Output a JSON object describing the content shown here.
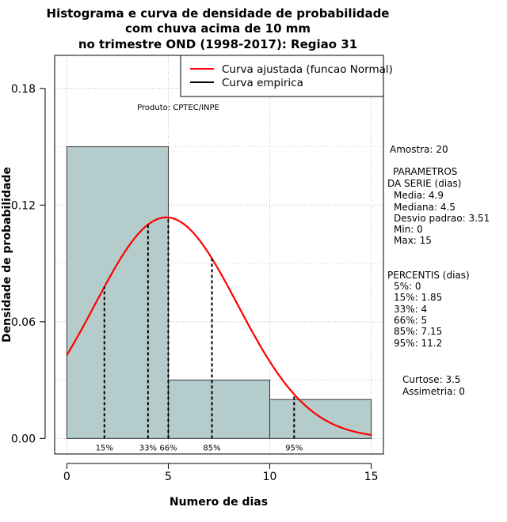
{
  "chart_data": {
    "type": "histogram",
    "title_lines": [
      "Histograma e curva de densidade de probabilidade",
      "com chuva acima de 10 mm",
      "no trimestre OND (1998-2017): Regiao 31"
    ],
    "xlabel": "Numero de dias",
    "ylabel": "Densidade de probabilidade",
    "xlim": [
      -0.6,
      15.6
    ],
    "ylim": [
      -0.008,
      0.197
    ],
    "x_ticks": [
      0,
      5,
      10,
      15
    ],
    "y_ticks": [
      0.0,
      0.06,
      0.12,
      0.18
    ],
    "y_tick_labels": [
      "0.00",
      "0.06",
      "0.12",
      "0.18"
    ],
    "bins": [
      {
        "start": 0,
        "end": 5,
        "density": 0.15
      },
      {
        "start": 5,
        "end": 10,
        "density": 0.03
      },
      {
        "start": 10,
        "end": 15,
        "density": 0.02
      }
    ],
    "bar_color": "#b5cccc",
    "curve": {
      "mean": 4.9,
      "sd": 3.51,
      "color": "#ff0000",
      "x_range": [
        0,
        15
      ]
    },
    "percentile_markers": [
      {
        "label": "15%",
        "x": 1.85
      },
      {
        "label": "33%",
        "x": 4
      },
      {
        "label": "66%",
        "x": 5
      },
      {
        "label": "85%",
        "x": 7.15
      },
      {
        "label": "95%",
        "x": 11.2
      }
    ],
    "legend": {
      "position": "top-right",
      "entries": [
        {
          "label": "Curva ajustada (funcao Normal)",
          "color": "#ff0000"
        },
        {
          "label": "Curva empirica",
          "color": "#000000"
        }
      ]
    },
    "credit": "Produto: CPTEC/INPE"
  },
  "side_stats": {
    "amostra": "Amostra: 20",
    "parametros_header_1": "PARAMETROS",
    "parametros_header_2": "DA SERIE (dias)",
    "parametros": [
      "Media: 4.9",
      "Mediana: 4.5",
      "Desvio padrao: 3.51",
      "Min: 0",
      "Max: 15"
    ],
    "percentis_header": "PERCENTIS (dias)",
    "percentis": [
      "5%: 0",
      "15%: 1.85",
      "33%: 4",
      "66%: 5",
      "85%: 7.15",
      "95%: 11.2"
    ],
    "curtose": "Curtose: 3.5",
    "assimetria": "Assimetria: 0"
  }
}
